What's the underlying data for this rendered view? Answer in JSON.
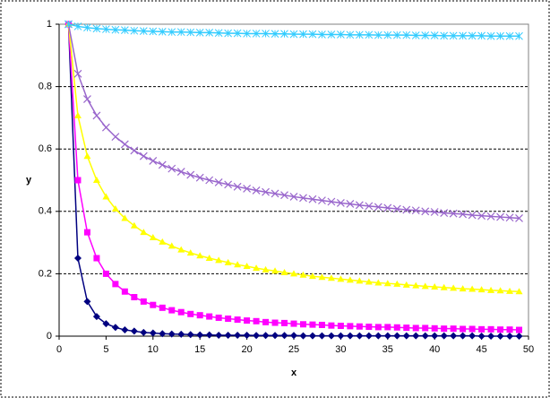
{
  "chart_data": {
    "type": "line",
    "x_label": "x",
    "y_label": "y",
    "x": [
      1,
      2,
      3,
      4,
      5,
      6,
      7,
      8,
      9,
      10,
      11,
      12,
      13,
      14,
      15,
      16,
      17,
      18,
      19,
      20,
      21,
      22,
      23,
      24,
      25,
      26,
      27,
      28,
      29,
      30,
      31,
      32,
      33,
      34,
      35,
      36,
      37,
      38,
      39,
      40,
      41,
      42,
      43,
      44,
      45,
      46,
      47,
      48,
      49
    ],
    "series": [
      {
        "color": "#000080",
        "marker": "diamond",
        "values": [
          1,
          0.25,
          0.111,
          0.063,
          0.04,
          0.028,
          0.02,
          0.016,
          0.012,
          0.01,
          0.008,
          0.007,
          0.006,
          0.005,
          0.004,
          0.004,
          0.003,
          0.003,
          0.003,
          0.003,
          0.002,
          0.002,
          0.002,
          0.002,
          0.002,
          0.001,
          0.001,
          0.001,
          0.001,
          0.001,
          0.001,
          0.001,
          0.001,
          0.001,
          0.001,
          0.001,
          0.001,
          0.001,
          0.001,
          0.001,
          0.001,
          0.001,
          0.001,
          0.001,
          0,
          0,
          0,
          0,
          0
        ]
      },
      {
        "color": "#ff00ff",
        "marker": "square",
        "values": [
          1,
          0.5,
          0.333,
          0.25,
          0.2,
          0.167,
          0.143,
          0.125,
          0.111,
          0.1,
          0.091,
          0.083,
          0.077,
          0.071,
          0.067,
          0.063,
          0.059,
          0.056,
          0.053,
          0.05,
          0.048,
          0.045,
          0.043,
          0.042,
          0.04,
          0.038,
          0.037,
          0.036,
          0.034,
          0.033,
          0.032,
          0.031,
          0.03,
          0.029,
          0.029,
          0.028,
          0.027,
          0.026,
          0.026,
          0.025,
          0.024,
          0.024,
          0.023,
          0.023,
          0.022,
          0.022,
          0.021,
          0.021,
          0.02
        ]
      },
      {
        "color": "#ffff00",
        "marker": "triangle",
        "values": [
          1,
          0.707,
          0.577,
          0.5,
          0.447,
          0.408,
          0.378,
          0.354,
          0.333,
          0.316,
          0.302,
          0.289,
          0.277,
          0.267,
          0.258,
          0.25,
          0.243,
          0.236,
          0.229,
          0.224,
          0.218,
          0.213,
          0.209,
          0.204,
          0.2,
          0.196,
          0.192,
          0.189,
          0.186,
          0.183,
          0.18,
          0.177,
          0.174,
          0.171,
          0.169,
          0.167,
          0.164,
          0.162,
          0.16,
          0.158,
          0.156,
          0.154,
          0.152,
          0.151,
          0.149,
          0.147,
          0.146,
          0.144,
          0.143
        ]
      },
      {
        "color": "#9966cc",
        "marker": "cross",
        "values": [
          1,
          0.841,
          0.76,
          0.707,
          0.669,
          0.639,
          0.615,
          0.595,
          0.577,
          0.562,
          0.549,
          0.537,
          0.527,
          0.517,
          0.508,
          0.5,
          0.493,
          0.486,
          0.479,
          0.473,
          0.467,
          0.462,
          0.457,
          0.452,
          0.447,
          0.443,
          0.439,
          0.435,
          0.431,
          0.427,
          0.424,
          0.42,
          0.417,
          0.414,
          0.411,
          0.408,
          0.405,
          0.403,
          0.4,
          0.398,
          0.395,
          0.393,
          0.391,
          0.388,
          0.386,
          0.384,
          0.382,
          0.38,
          0.378
        ]
      },
      {
        "color": "#33ccff",
        "marker": "star",
        "values": [
          1,
          0.993,
          0.989,
          0.986,
          0.984,
          0.982,
          0.981,
          0.979,
          0.978,
          0.977,
          0.976,
          0.975,
          0.975,
          0.974,
          0.973,
          0.973,
          0.972,
          0.971,
          0.971,
          0.97,
          0.97,
          0.97,
          0.969,
          0.969,
          0.968,
          0.968,
          0.968,
          0.967,
          0.967,
          0.967,
          0.966,
          0.966,
          0.966,
          0.965,
          0.965,
          0.965,
          0.965,
          0.964,
          0.964,
          0.964,
          0.963,
          0.963,
          0.963,
          0.963,
          0.963,
          0.962,
          0.962,
          0.962,
          0.962
        ]
      }
    ],
    "xlim": [
      0,
      50
    ],
    "xticks": [
      0,
      5,
      10,
      15,
      20,
      25,
      30,
      35,
      40,
      45,
      50
    ],
    "ylim": [
      0,
      1
    ],
    "yticks": [
      0,
      0.2,
      0.4,
      0.6,
      0.8,
      1
    ],
    "grid": true
  }
}
